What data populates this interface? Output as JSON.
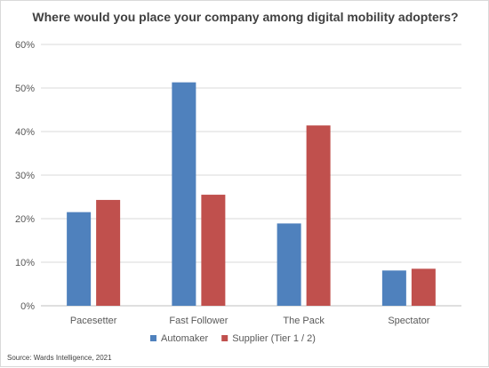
{
  "chart_data": {
    "type": "bar",
    "title": "Where would you place your company among digital mobility adopters?",
    "categories": [
      "Pacesetter",
      "Fast Follower",
      "The Pack",
      "Spectator"
    ],
    "series": [
      {
        "name": "Automaker",
        "values": [
          21.5,
          51.3,
          18.9,
          8.1
        ]
      },
      {
        "name": "Supplier (Tier 1 / 2)",
        "values": [
          24.3,
          25.5,
          41.4,
          8.5
        ]
      }
    ],
    "y_ticks": [
      "0%",
      "10%",
      "20%",
      "30%",
      "40%",
      "50%",
      "60%"
    ],
    "ylim": [
      0,
      60
    ],
    "grid": true,
    "legend_position": "bottom",
    "colors": [
      "#4f81bd",
      "#c0504d"
    ],
    "source": "Source: Wards Intelligence, 2021"
  }
}
